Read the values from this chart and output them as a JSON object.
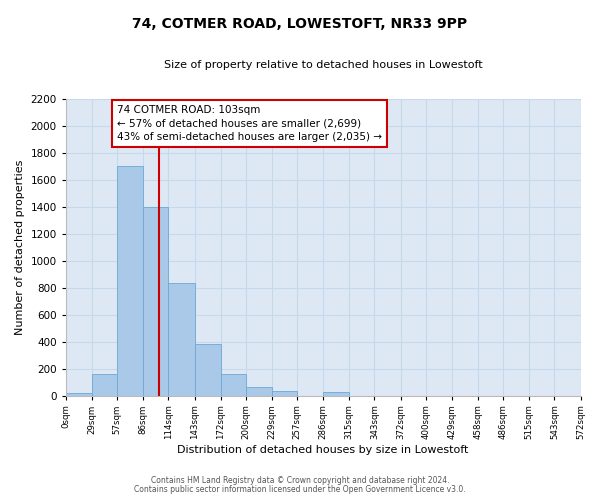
{
  "title": "74, COTMER ROAD, LOWESTOFT, NR33 9PP",
  "subtitle": "Size of property relative to detached houses in Lowestoft",
  "xlabel": "Distribution of detached houses by size in Lowestoft",
  "ylabel": "Number of detached properties",
  "bins": [
    0,
    29,
    57,
    86,
    114,
    143,
    172,
    200,
    229,
    257,
    286,
    315,
    343,
    372,
    400,
    429,
    458,
    486,
    515,
    543,
    572
  ],
  "bin_labels": [
    "0sqm",
    "29sqm",
    "57sqm",
    "86sqm",
    "114sqm",
    "143sqm",
    "172sqm",
    "200sqm",
    "229sqm",
    "257sqm",
    "286sqm",
    "315sqm",
    "343sqm",
    "372sqm",
    "400sqm",
    "429sqm",
    "458sqm",
    "486sqm",
    "515sqm",
    "543sqm",
    "572sqm"
  ],
  "counts": [
    20,
    160,
    1700,
    1400,
    830,
    380,
    160,
    65,
    30,
    0,
    25,
    0,
    0,
    0,
    0,
    0,
    0,
    0,
    0,
    0
  ],
  "bar_color": "#aac8e8",
  "bar_edge_color": "#6aaad4",
  "property_line_x": 103,
  "property_line_color": "#cc0000",
  "annotation_text": "74 COTMER ROAD: 103sqm\n← 57% of detached houses are smaller (2,699)\n43% of semi-detached houses are larger (2,035) →",
  "annotation_box_facecolor": "#ffffff",
  "annotation_box_edgecolor": "#cc0000",
  "ylim": [
    0,
    2200
  ],
  "yticks": [
    0,
    200,
    400,
    600,
    800,
    1000,
    1200,
    1400,
    1600,
    1800,
    2000,
    2200
  ],
  "grid_color": "#c8d8ec",
  "plot_bg_color": "#dde8f4",
  "fig_bg_color": "#ffffff",
  "footnote1": "Contains HM Land Registry data © Crown copyright and database right 2024.",
  "footnote2": "Contains public sector information licensed under the Open Government Licence v3.0."
}
